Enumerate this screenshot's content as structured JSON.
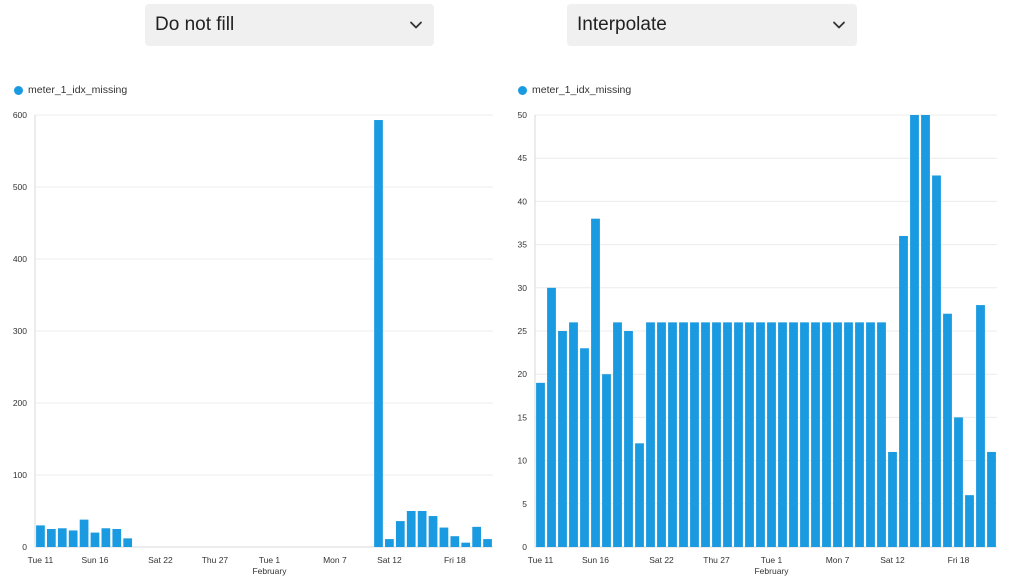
{
  "controls": {
    "left_select": {
      "value": "Do not fill"
    },
    "right_select": {
      "value": "Interpolate"
    }
  },
  "accent_color": "#1a9ae0",
  "chart_data": [
    {
      "type": "bar",
      "legend": "meter_1_idx_missing",
      "legend_position": "top-left",
      "grid": true,
      "ylim": [
        0,
        600
      ],
      "yticks": [
        0,
        100,
        200,
        300,
        400,
        500,
        600
      ],
      "xticks": [
        {
          "label": "Tue 11",
          "sub": ""
        },
        {
          "label": "Sun 16",
          "sub": ""
        },
        {
          "label": "Sat 22",
          "sub": ""
        },
        {
          "label": "Thu 27",
          "sub": ""
        },
        {
          "label": "Tue 1",
          "sub": "February"
        },
        {
          "label": "Mon 7",
          "sub": ""
        },
        {
          "label": "Sat 12",
          "sub": ""
        },
        {
          "label": "Fri 18",
          "sub": ""
        }
      ],
      "values": [
        30,
        25,
        26,
        23,
        38,
        20,
        26,
        25,
        12,
        null,
        null,
        null,
        null,
        null,
        null,
        null,
        null,
        null,
        null,
        null,
        null,
        null,
        null,
        null,
        null,
        null,
        null,
        null,
        null,
        null,
        null,
        593,
        11,
        36,
        50,
        50,
        43,
        27,
        15,
        6,
        28,
        11
      ]
    },
    {
      "type": "bar",
      "legend": "meter_1_idx_missing",
      "legend_position": "top-left",
      "grid": true,
      "ylim": [
        0,
        50
      ],
      "yticks": [
        0,
        5,
        10,
        15,
        20,
        25,
        30,
        35,
        40,
        45,
        50
      ],
      "xticks": [
        {
          "label": "Tue 11",
          "sub": ""
        },
        {
          "label": "Sun 16",
          "sub": ""
        },
        {
          "label": "Sat 22",
          "sub": ""
        },
        {
          "label": "Thu 27",
          "sub": ""
        },
        {
          "label": "Tue 1",
          "sub": "February"
        },
        {
          "label": "Mon 7",
          "sub": ""
        },
        {
          "label": "Sat 12",
          "sub": ""
        },
        {
          "label": "Fri 18",
          "sub": ""
        }
      ],
      "values": [
        19,
        30,
        25,
        26,
        23,
        38,
        20,
        26,
        25,
        12,
        26,
        26,
        26,
        26,
        26,
        26,
        26,
        26,
        26,
        26,
        26,
        26,
        26,
        26,
        26,
        26,
        26,
        26,
        26,
        26,
        26,
        26,
        11,
        36,
        50,
        50,
        43,
        27,
        15,
        6,
        28,
        11
      ]
    }
  ]
}
